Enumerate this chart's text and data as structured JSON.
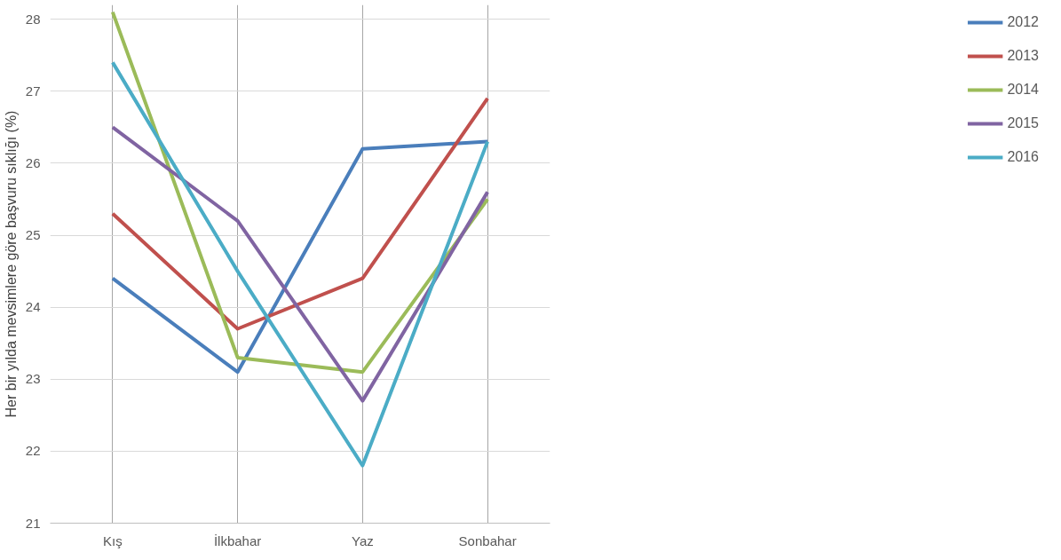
{
  "chart_data": {
    "type": "line",
    "ylabel": "Her bir yılda mevsimlere göre başvuru sıklığı (%)",
    "categories": [
      "Kış",
      "İlkbahar",
      "Yaz",
      "Sonbahar"
    ],
    "series": [
      {
        "name": "2012",
        "color": "#4a7ebb",
        "values": [
          24.4,
          23.1,
          26.2,
          26.3
        ]
      },
      {
        "name": "2013",
        "color": "#c0504d",
        "values": [
          25.3,
          23.7,
          24.4,
          26.9
        ]
      },
      {
        "name": "2014",
        "color": "#9bbb59",
        "values": [
          28.1,
          23.3,
          23.1,
          25.5
        ]
      },
      {
        "name": "2015",
        "color": "#8064a2",
        "values": [
          26.5,
          25.2,
          22.7,
          25.6
        ]
      },
      {
        "name": "2016",
        "color": "#4bacc6",
        "values": [
          27.4,
          24.5,
          21.8,
          26.3
        ]
      }
    ],
    "ylim": [
      21,
      28.2
    ],
    "yticks": [
      21,
      22,
      23,
      24,
      25,
      26,
      27,
      28
    ],
    "grid": true,
    "legend": "right",
    "marker": "none",
    "line_style": "solid"
  }
}
